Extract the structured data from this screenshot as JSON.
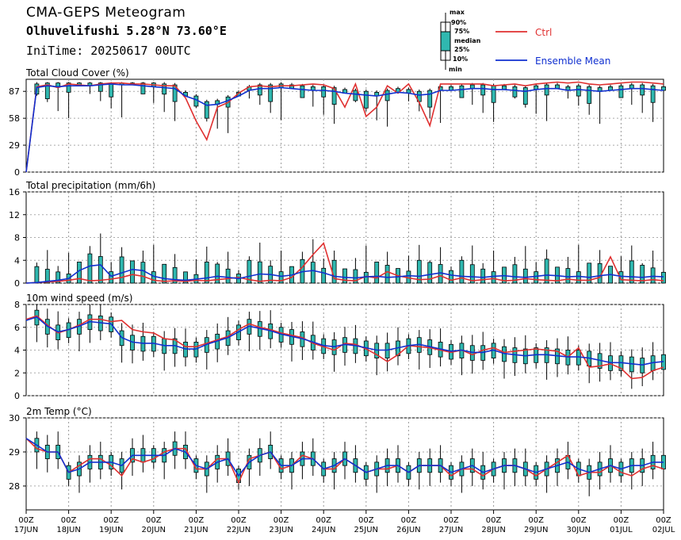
{
  "header": {
    "title": "CMA-GEPS Meteogram",
    "location": "Olhuvelifushi 5.28°N 73.60°E",
    "init": "IniTime: 20250617 00UTC"
  },
  "legend": {
    "box_labels": [
      "max",
      "90%",
      "75%",
      "median",
      "25%",
      "10%",
      "min"
    ],
    "ctrl_label": "Ctrl",
    "mean_label": "Ensemble Mean",
    "ctrl_color": "#e03030",
    "mean_color": "#1030d0",
    "box_color": "#30b8b0"
  },
  "x_axis": {
    "hour_label": "00Z",
    "dates": [
      "17JUN",
      "18JUN",
      "19JUN",
      "20JUN",
      "21JUN",
      "22JUN",
      "23JUN",
      "24JUN",
      "25JUN",
      "26JUN",
      "27JUN",
      "28JUN",
      "29JUN",
      "30JUN",
      "01JUL",
      "02JUL"
    ]
  },
  "chart_data": [
    {
      "type": "line",
      "title": "Total Cloud Cover (%)",
      "ylim": [
        0,
        100
      ],
      "yticks": [
        0,
        29,
        58,
        87
      ],
      "x": "6-hourly steps from 17JUN 00Z to 02JUL 00Z",
      "series": [
        {
          "name": "Ctrl",
          "values": [
            0,
            92,
            94,
            91,
            95,
            94,
            93,
            95,
            96,
            96,
            95,
            95,
            94,
            93,
            93,
            80,
            55,
            35,
            70,
            75,
            85,
            92,
            93,
            92,
            93,
            93,
            94,
            95,
            94,
            90,
            70,
            95,
            60,
            70,
            93,
            85,
            95,
            75,
            50,
            95,
            95,
            95,
            95,
            95,
            93,
            94,
            95,
            93,
            95,
            96,
            97,
            96,
            97,
            95,
            94,
            95,
            96,
            97,
            97,
            96,
            95,
            93
          ]
        },
        {
          "name": "Ensemble Mean",
          "values": [
            0,
            91,
            93,
            92,
            93,
            93,
            93,
            94,
            95,
            94,
            94,
            93,
            92,
            91,
            90,
            82,
            78,
            72,
            73,
            77,
            82,
            88,
            90,
            90,
            91,
            90,
            89,
            88,
            88,
            87,
            85,
            84,
            83,
            82,
            84,
            86,
            85,
            83,
            84,
            88,
            88,
            89,
            90,
            90,
            89,
            89,
            88,
            87,
            89,
            90,
            90,
            88,
            89,
            88,
            87,
            88,
            89,
            90,
            90,
            89,
            88,
            88
          ]
        }
      ],
      "boxes_note": "ensemble box-whisker at each 6h step (min/10%/25%/median/75%/90%/max)"
    },
    {
      "type": "line",
      "title": "Total precipitation (mm/6h)",
      "ylim": [
        0,
        16
      ],
      "yticks": [
        0,
        4,
        8,
        12,
        16
      ],
      "series": [
        {
          "name": "Ctrl",
          "values": [
            0,
            0.1,
            0.2,
            0.3,
            0.5,
            0.8,
            0.4,
            0.5,
            0.7,
            1.0,
            1.5,
            1.2,
            0.5,
            0.3,
            0.4,
            0.3,
            0.5,
            0.4,
            0.6,
            0.8,
            1.0,
            0.6,
            0.3,
            0.5,
            0.4,
            1.0,
            2.8,
            5.0,
            7.0,
            0.8,
            0.5,
            0.4,
            1.2,
            0.9,
            2.0,
            1.3,
            0.9,
            0.6,
            0.7,
            1.3,
            0.5,
            0.9,
            0.4,
            0.6,
            0.8,
            0.4,
            0.5,
            0.8,
            0.6,
            0.5,
            0.4,
            0.7,
            0.5,
            0.5,
            1.0,
            4.6,
            0.6,
            0.5,
            0.4,
            0.6,
            0.4,
            0.5
          ]
        },
        {
          "name": "Ensemble Mean",
          "values": [
            0,
            0.1,
            0.3,
            0.5,
            0.8,
            2.2,
            3.0,
            3.2,
            1.2,
            1.8,
            2.4,
            2.2,
            1.2,
            0.8,
            0.6,
            0.5,
            0.7,
            0.9,
            1.2,
            1.0,
            0.8,
            1.2,
            1.6,
            1.5,
            1.2,
            1.4,
            2.0,
            2.2,
            1.8,
            1.2,
            1.0,
            0.9,
            1.1,
            1.2,
            1.0,
            1.1,
            1.3,
            1.2,
            1.5,
            1.8,
            1.4,
            1.2,
            1.1,
            1.0,
            1.2,
            1.3,
            1.1,
            1.0,
            1.2,
            1.4,
            1.3,
            1.1,
            1.2,
            1.0,
            1.3,
            1.5,
            1.2,
            1.1,
            1.0,
            1.2,
            1.1,
            1.0
          ]
        }
      ]
    },
    {
      "type": "line",
      "title": "10m wind speed (m/s)",
      "ylim": [
        0,
        8
      ],
      "yticks": [
        0,
        2,
        4,
        6,
        8
      ],
      "series": [
        {
          "name": "Ctrl",
          "values": [
            6.7,
            7.0,
            6.2,
            5.5,
            5.8,
            6.2,
            6.7,
            6.7,
            6.5,
            6.6,
            5.8,
            5.6,
            5.5,
            5.0,
            4.9,
            4.3,
            4.3,
            4.6,
            4.9,
            5.2,
            5.8,
            6.3,
            6.0,
            5.8,
            5.5,
            5.3,
            5.1,
            4.6,
            4.3,
            4.0,
            4.6,
            4.5,
            4.1,
            3.6,
            3.0,
            3.6,
            4.4,
            4.3,
            4.2,
            4.0,
            3.8,
            4.0,
            3.6,
            4.0,
            4.2,
            3.8,
            3.9,
            4.0,
            4.1,
            4.0,
            3.9,
            3.4,
            4.2,
            2.5,
            2.6,
            2.8,
            2.4,
            1.5,
            1.6,
            2.2,
            2.5,
            2.4
          ]
        },
        {
          "name": "Ensemble Mean",
          "values": [
            6.6,
            6.9,
            6.1,
            5.6,
            5.8,
            6.1,
            6.5,
            6.4,
            6.3,
            5.1,
            4.7,
            4.6,
            4.6,
            4.4,
            4.4,
            4.1,
            4.1,
            4.5,
            4.8,
            5.1,
            5.6,
            6.1,
            5.9,
            5.7,
            5.4,
            5.2,
            5.0,
            4.7,
            4.4,
            4.3,
            4.5,
            4.4,
            4.2,
            4.0,
            4.0,
            4.2,
            4.4,
            4.5,
            4.3,
            4.1,
            3.9,
            4.0,
            3.8,
            3.8,
            4.0,
            3.7,
            3.6,
            3.5,
            3.6,
            3.6,
            3.5,
            3.4,
            3.4,
            3.3,
            3.1,
            2.9,
            2.9,
            2.8,
            2.7,
            2.9,
            3.0,
            3.1
          ]
        }
      ]
    },
    {
      "type": "line",
      "title": "2m Temp (°C)",
      "ylim": [
        27.3,
        30
      ],
      "yticks": [
        28,
        29,
        30
      ],
      "series": [
        {
          "name": "Ctrl",
          "values": [
            29.4,
            29.1,
            29.0,
            29.0,
            28.4,
            28.6,
            28.8,
            28.8,
            28.6,
            28.3,
            28.8,
            28.7,
            28.8,
            29.0,
            29.1,
            29.1,
            28.5,
            28.5,
            28.8,
            28.8,
            28.1,
            28.8,
            28.9,
            29.0,
            28.5,
            28.6,
            28.9,
            28.8,
            28.5,
            28.5,
            28.8,
            28.6,
            28.4,
            28.5,
            28.5,
            28.6,
            28.4,
            28.6,
            28.6,
            28.6,
            28.3,
            28.5,
            28.5,
            28.3,
            28.5,
            28.6,
            28.6,
            28.5,
            28.3,
            28.5,
            28.7,
            28.9,
            28.3,
            28.4,
            28.4,
            28.6,
            28.4,
            28.3,
            28.5,
            28.6,
            28.5,
            28.4
          ]
        },
        {
          "name": "Ensemble Mean",
          "values": [
            29.4,
            29.2,
            29.0,
            29.0,
            28.4,
            28.5,
            28.7,
            28.7,
            28.7,
            28.6,
            28.9,
            28.9,
            28.9,
            28.9,
            29.1,
            29.0,
            28.6,
            28.5,
            28.7,
            28.8,
            28.3,
            28.7,
            28.9,
            29.0,
            28.6,
            28.6,
            28.8,
            28.8,
            28.5,
            28.6,
            28.8,
            28.6,
            28.4,
            28.5,
            28.6,
            28.6,
            28.4,
            28.6,
            28.6,
            28.6,
            28.4,
            28.5,
            28.6,
            28.4,
            28.5,
            28.6,
            28.6,
            28.5,
            28.4,
            28.5,
            28.6,
            28.7,
            28.5,
            28.4,
            28.5,
            28.6,
            28.5,
            28.6,
            28.6,
            28.7,
            28.7,
            28.5
          ]
        }
      ]
    }
  ]
}
